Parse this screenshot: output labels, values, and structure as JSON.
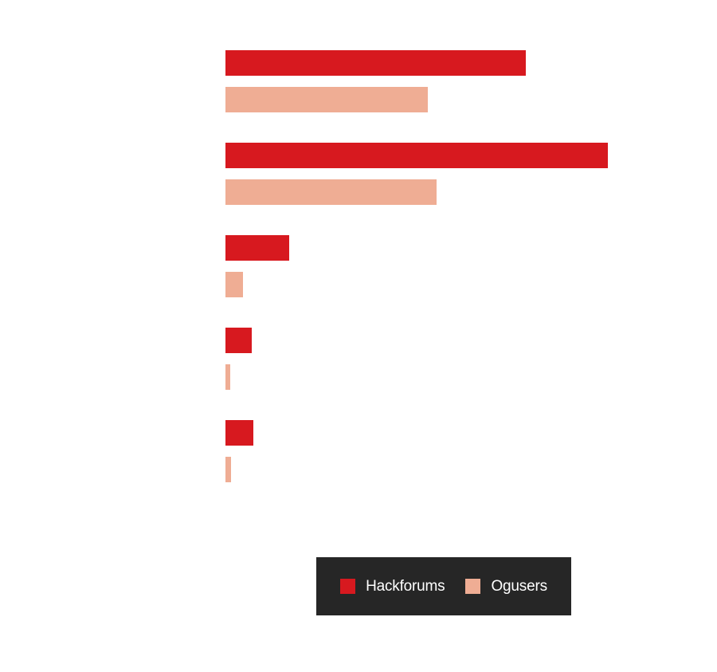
{
  "chart_data": {
    "type": "bar",
    "orientation": "horizontal",
    "categories": [
      "",
      "",
      "",
      "",
      ""
    ],
    "series": [
      {
        "name": "Hackforums",
        "color": "#d7191f",
        "values": [
          37.7,
          48.0,
          8.0,
          3.3,
          3.5
        ]
      },
      {
        "name": "Ogusers",
        "color": "#efad94",
        "values": [
          25.4,
          26.5,
          2.2,
          0.6,
          0.7
        ]
      }
    ],
    "xlim": [
      0,
      50
    ],
    "grid": false,
    "legend": "bottom"
  }
}
